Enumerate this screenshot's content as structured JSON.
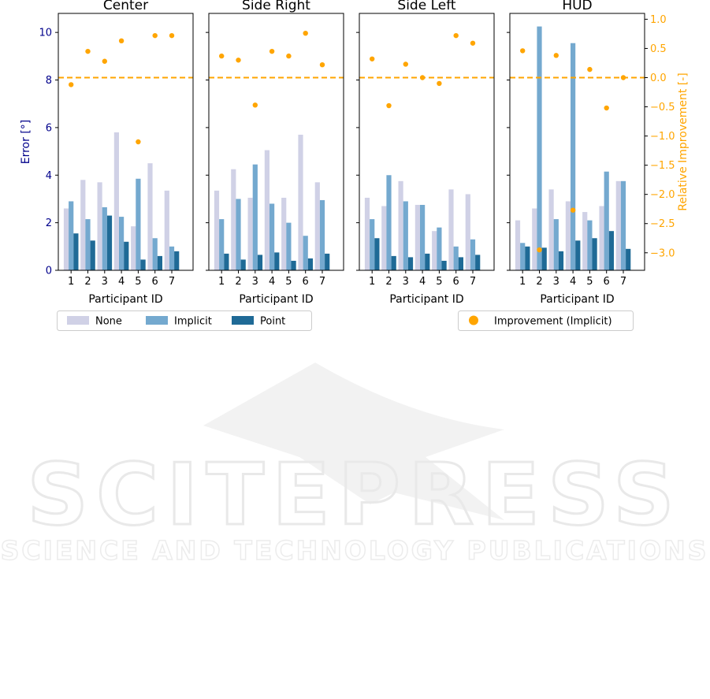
{
  "chart_data": {
    "type": "bar",
    "ylabel": "Error [°]",
    "ylabel_right": "Relative Improvement [-]",
    "xlabel": "Participant ID",
    "categories": [
      "1",
      "2",
      "3",
      "4",
      "5",
      "6",
      "7"
    ],
    "ylim": [
      0,
      10.8
    ],
    "ylim_right": [
      -3.3,
      1.1
    ],
    "yticks": [
      0,
      2,
      4,
      6,
      8,
      10
    ],
    "yticks_right": [
      1.0,
      0.5,
      0.0,
      -0.5,
      -1.0,
      -1.5,
      -2.0,
      -2.5,
      -3.0
    ],
    "yticks_right_labels": [
      "1.0",
      "0.5",
      "0.0",
      "−0.5",
      "−1.0",
      "−1.5",
      "−2.0",
      "−2.5",
      "−3.0"
    ],
    "reference_line": 0.0,
    "grid": false,
    "legend_left": [
      "None",
      "Implicit",
      "Point"
    ],
    "legend_right": "Improvement (Implicit)",
    "colors": {
      "None": "#d0d1e6",
      "Implicit": "#74a9cf",
      "Point": "#1f6a96",
      "improvement": "#ffa500",
      "left_axis": "#00008b",
      "right_axis": "#ffa500"
    },
    "panels": [
      {
        "title": "Center",
        "series": [
          {
            "name": "None",
            "values": [
              2.6,
              3.8,
              3.7,
              5.8,
              1.85,
              4.5,
              3.35
            ]
          },
          {
            "name": "Implicit",
            "values": [
              2.9,
              2.15,
              2.65,
              2.25,
              3.85,
              1.35,
              1.0
            ]
          },
          {
            "name": "Point",
            "values": [
              1.55,
              1.25,
              2.3,
              1.2,
              0.45,
              0.6,
              0.8
            ]
          }
        ],
        "improvement": [
          -0.12,
          0.45,
          0.28,
          0.63,
          -1.1,
          0.72,
          0.72
        ]
      },
      {
        "title": "Side Right",
        "series": [
          {
            "name": "None",
            "values": [
              3.35,
              4.25,
              3.05,
              5.05,
              3.05,
              5.7,
              3.7
            ]
          },
          {
            "name": "Implicit",
            "values": [
              2.15,
              3.0,
              4.45,
              2.8,
              2.0,
              1.45,
              2.95
            ]
          },
          {
            "name": "Point",
            "values": [
              0.7,
              0.45,
              0.65,
              0.75,
              0.4,
              0.5,
              0.7
            ]
          }
        ],
        "improvement": [
          0.37,
          0.3,
          -0.47,
          0.45,
          0.37,
          0.76,
          0.22
        ]
      },
      {
        "title": "Side Left",
        "series": [
          {
            "name": "None",
            "values": [
              3.05,
              2.7,
              3.75,
              2.75,
              1.65,
              3.4,
              3.2
            ]
          },
          {
            "name": "Implicit",
            "values": [
              2.15,
              4.0,
              2.9,
              2.75,
              1.8,
              1.0,
              1.3
            ]
          },
          {
            "name": "Point",
            "values": [
              1.35,
              0.6,
              0.55,
              0.7,
              0.4,
              0.55,
              0.65
            ]
          }
        ],
        "improvement": [
          0.32,
          -0.48,
          0.23,
          0.0,
          -0.1,
          0.72,
          0.59
        ]
      },
      {
        "title": "HUD",
        "series": [
          {
            "name": "None",
            "values": [
              2.1,
              2.6,
              3.4,
              2.9,
              2.45,
              2.7,
              3.75
            ]
          },
          {
            "name": "Implicit",
            "values": [
              1.15,
              10.25,
              2.15,
              9.55,
              2.1,
              4.15,
              3.75
            ]
          },
          {
            "name": "Point",
            "values": [
              1.0,
              0.95,
              0.8,
              1.25,
              1.35,
              1.65,
              0.9
            ]
          }
        ],
        "improvement": [
          0.46,
          -2.95,
          0.38,
          -2.27,
          0.14,
          -0.52,
          0.0
        ]
      }
    ]
  },
  "watermark": {
    "line1": "SCITEPRESS",
    "line2": "SCIENCE AND TECHNOLOGY PUBLICATIONS"
  }
}
